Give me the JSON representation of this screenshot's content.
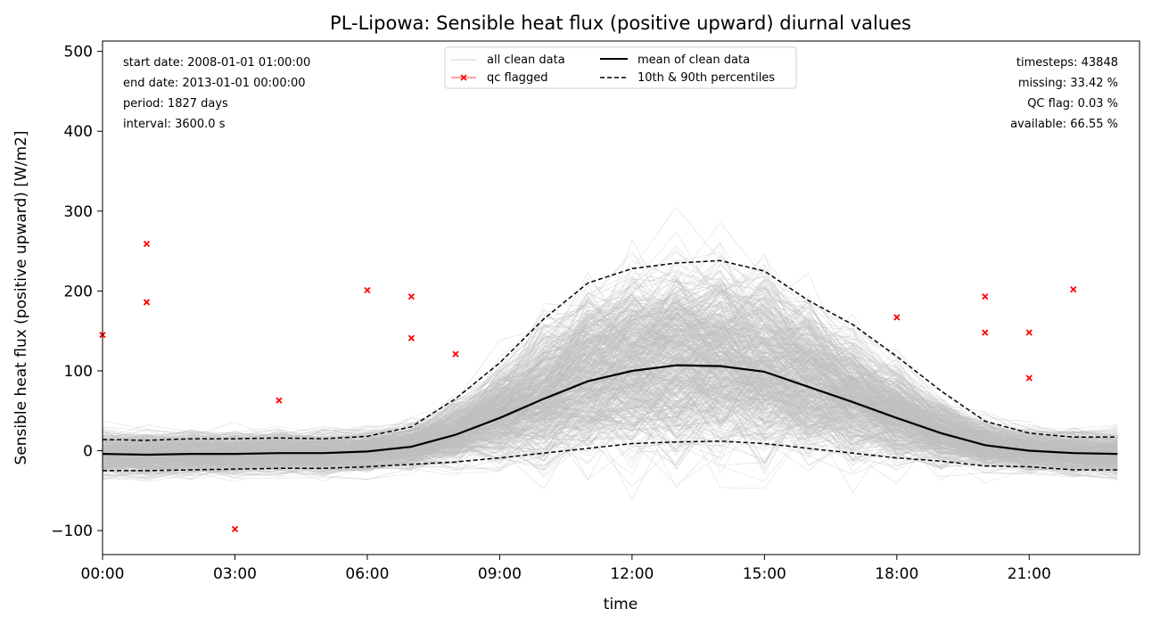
{
  "chart_data": {
    "type": "line",
    "title": "PL-Lipowa: Sensible heat flux (positive upward) diurnal values",
    "xlabel": "time",
    "ylabel": "Sensible heat flux (positive upward) [W/m2]",
    "xlim": [
      0,
      23.5
    ],
    "ylim": [
      -130,
      513
    ],
    "x_ticks": [
      {
        "x": 0,
        "label": "00:00"
      },
      {
        "x": 3,
        "label": "03:00"
      },
      {
        "x": 6,
        "label": "06:00"
      },
      {
        "x": 9,
        "label": "09:00"
      },
      {
        "x": 12,
        "label": "12:00"
      },
      {
        "x": 15,
        "label": "15:00"
      },
      {
        "x": 18,
        "label": "18:00"
      },
      {
        "x": 21,
        "label": "21:00"
      }
    ],
    "y_ticks": [
      -100,
      0,
      100,
      200,
      300,
      400,
      500
    ],
    "x": [
      0,
      1,
      2,
      3,
      4,
      5,
      6,
      7,
      8,
      9,
      10,
      11,
      12,
      13,
      14,
      15,
      16,
      17,
      18,
      19,
      20,
      21,
      22,
      23
    ],
    "series": [
      {
        "name": "mean of clean data",
        "style": "solid",
        "color": "#000000",
        "values": [
          -4,
          -5,
          -4,
          -4,
          -3,
          -3,
          -1,
          5,
          20,
          41,
          65,
          87,
          100,
          107,
          106,
          99,
          80,
          61,
          41,
          22,
          7,
          0,
          -3,
          -4
        ]
      },
      {
        "name": "10th & 90th percentiles",
        "style": "dashed",
        "color": "#000000",
        "values": [
          14,
          13,
          15,
          15,
          16,
          15,
          18,
          30,
          65,
          110,
          165,
          210,
          228,
          235,
          238,
          225,
          188,
          158,
          118,
          75,
          37,
          22,
          17,
          17
        ]
      },
      {
        "name": "",
        "style": "dashed",
        "color": "#000000",
        "values": [
          -25,
          -25,
          -24,
          -23,
          -22,
          -22,
          -20,
          -17,
          -14,
          -9,
          -3,
          3,
          9,
          11,
          12,
          9,
          3,
          -3,
          -9,
          -13,
          -19,
          -20,
          -24,
          -24
        ]
      }
    ],
    "clean_data_band": {
      "color": "#c0c0c0",
      "count": 1827
    },
    "qc_flagged": [
      {
        "x": 0,
        "y": 145
      },
      {
        "x": 1,
        "y": 259
      },
      {
        "x": 1,
        "y": 186
      },
      {
        "x": 3,
        "y": -98
      },
      {
        "x": 4,
        "y": 63
      },
      {
        "x": 6,
        "y": 201
      },
      {
        "x": 7,
        "y": 193
      },
      {
        "x": 7,
        "y": 141
      },
      {
        "x": 8,
        "y": 121
      },
      {
        "x": 18,
        "y": 167
      },
      {
        "x": 20,
        "y": 193
      },
      {
        "x": 20,
        "y": 148
      },
      {
        "x": 21,
        "y": 148
      },
      {
        "x": 21,
        "y": 91
      },
      {
        "x": 22,
        "y": 202
      }
    ],
    "legend": {
      "placement": "top-center",
      "entries": [
        {
          "label": "all clean data",
          "kind": "thin-line",
          "color": "#c0c0c0"
        },
        {
          "label": "qc flagged",
          "kind": "line-x-marker",
          "color": "#ff0000"
        },
        {
          "label": "mean of clean data",
          "kind": "solid",
          "color": "#000000"
        },
        {
          "label": "10th & 90th percentiles",
          "kind": "dashed",
          "color": "#000000"
        }
      ]
    },
    "annotations_left": [
      "start date: 2008-01-01 01:00:00",
      "end date: 2013-01-01 00:00:00",
      "period: 1827 days",
      "interval: 3600.0 s"
    ],
    "annotations_right": [
      "timesteps: 43848",
      "missing: 33.42 %",
      "QC flag: 0.03 %",
      "available: 66.55 %"
    ],
    "grid": false
  }
}
